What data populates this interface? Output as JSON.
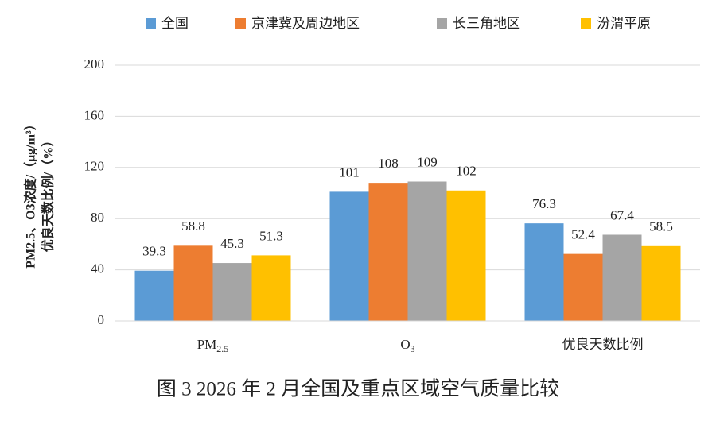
{
  "chart_data": {
    "type": "bar",
    "caption": "图 3   2026 年 2 月全国及重点区域空气质量比较",
    "ylabel": [
      "PM2.5、O3浓度/（μg/m³）",
      "优良天数比例/（%）"
    ],
    "categories": [
      "PM2.5",
      "O3",
      "优良天数比例"
    ],
    "series": [
      {
        "name": "全国",
        "color": "#5b9bd5",
        "values": [
          39.3,
          101,
          76.3
        ]
      },
      {
        "name": "京津冀及周边地区",
        "color": "#ed7d31",
        "values": [
          58.8,
          108,
          52.4
        ]
      },
      {
        "name": "长三角地区",
        "color": "#a5a5a5",
        "values": [
          45.3,
          109,
          67.4
        ]
      },
      {
        "name": "汾渭平原",
        "color": "#ffc000",
        "values": [
          51.3,
          102,
          58.5
        ]
      }
    ],
    "ylim": [
      0,
      200
    ],
    "yticks": [
      0,
      40,
      80,
      120,
      160,
      200
    ],
    "grid": true,
    "legend": "top"
  }
}
